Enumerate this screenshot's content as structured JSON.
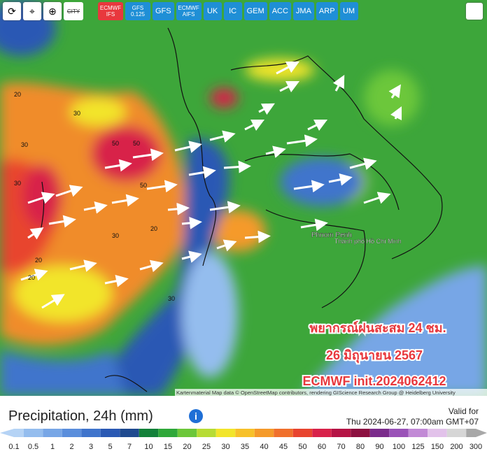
{
  "toolbar": {
    "buttons": [
      {
        "label": "CITY",
        "color": "#ffffff"
      },
      {
        "label": "ECMWF IFS",
        "color": "#e8383d"
      },
      {
        "label": "GFS 0.125",
        "color": "#1f8fd6"
      },
      {
        "label": "GFS",
        "color": "#1f8fd6"
      },
      {
        "label": "ECMWF AIFS",
        "color": "#1f8fd6"
      },
      {
        "label": "UK",
        "color": "#1f8fd6"
      },
      {
        "label": "IC",
        "color": "#1f8fd6"
      },
      {
        "label": "GEM",
        "color": "#1f8fd6"
      },
      {
        "label": "ACC",
        "color": "#1f8fd6"
      },
      {
        "label": "JMA",
        "color": "#1f8fd6"
      },
      {
        "label": "ARP",
        "color": "#1f8fd6"
      },
      {
        "label": "UM",
        "color": "#1f8fd6"
      }
    ]
  },
  "map": {
    "places": [
      "Phnom Penh",
      "Thành phố Hồ Chí Minh"
    ],
    "contour_labels": [
      "20",
      "30",
      "50",
      "50",
      "30",
      "30",
      "50",
      "30",
      "20",
      "20",
      "30",
      "20"
    ],
    "overlay": [
      "พยากรณ์ฝนสะสม 24 ชม.",
      "26 มิถุนายน 2567",
      "ECMWF init.2024062412"
    ],
    "attribution": "Kartenmaterial Map data © OpenStreetMap contributors, rendering GIScience Research Group @ Heidelberg University"
  },
  "legend": {
    "title": "Precipitation, 24h (mm)",
    "valid_label": "Valid for",
    "valid_time": "Thu 2024-06-27, 07:00am GMT+07",
    "scale": [
      {
        "value": 0.1,
        "color": "#b5d3f5"
      },
      {
        "value": 0.5,
        "color": "#94bdee"
      },
      {
        "value": 1,
        "color": "#77a6e6"
      },
      {
        "value": 2,
        "color": "#5a8edc"
      },
      {
        "value": 3,
        "color": "#3f74cc"
      },
      {
        "value": 5,
        "color": "#2a59b4"
      },
      {
        "value": 7,
        "color": "#1f4a8f"
      },
      {
        "value": 10,
        "color": "#13813a"
      },
      {
        "value": 15,
        "color": "#2fa83a"
      },
      {
        "value": 20,
        "color": "#6cc73a"
      },
      {
        "value": 25,
        "color": "#b7dc35"
      },
      {
        "value": 30,
        "color": "#f2e52b"
      },
      {
        "value": 35,
        "color": "#f7c12a"
      },
      {
        "value": 40,
        "color": "#f59a2a"
      },
      {
        "value": 45,
        "color": "#f0702c"
      },
      {
        "value": 50,
        "color": "#e8442f"
      },
      {
        "value": 60,
        "color": "#d8224a"
      },
      {
        "value": 70,
        "color": "#b51445"
      },
      {
        "value": 80,
        "color": "#8c1040"
      },
      {
        "value": 90,
        "color": "#7b2c8c"
      },
      {
        "value": 100,
        "color": "#9a52b8"
      },
      {
        "value": 125,
        "color": "#c28ad6"
      },
      {
        "value": 150,
        "color": "#e2c2ea"
      },
      {
        "value": 200,
        "color": "#d6d6d6"
      },
      {
        "value": 300,
        "color": "#a8a8a8"
      }
    ]
  }
}
